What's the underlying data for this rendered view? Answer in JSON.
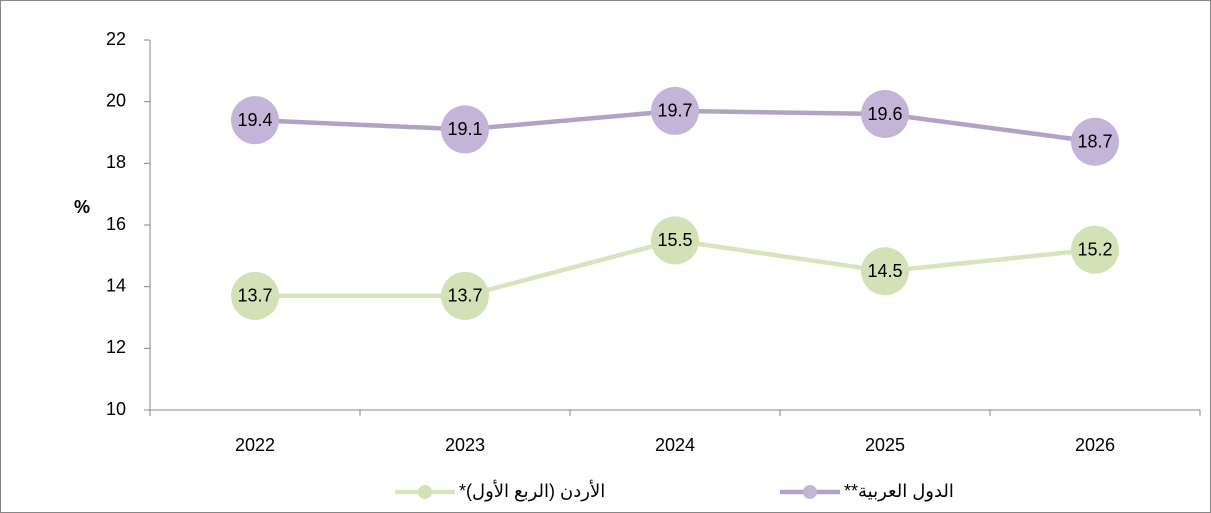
{
  "chart_data": {
    "type": "line",
    "categories": [
      "2022",
      "2023",
      "2024",
      "2025",
      "2026"
    ],
    "series": [
      {
        "name": "الأردن (الربع الأول)*",
        "color": "#d7e4bd",
        "marker_color": "#d3e1b6",
        "values": [
          13.7,
          13.7,
          15.5,
          14.5,
          15.2
        ]
      },
      {
        "name": "الدول العربية**",
        "color": "#b3a2c7",
        "marker_color": "#c4b5d8",
        "values": [
          19.4,
          19.1,
          19.7,
          19.6,
          18.7
        ]
      }
    ],
    "y_label": "%",
    "ylim": [
      10,
      22
    ],
    "yticks": [
      10,
      12,
      14,
      16,
      18,
      20,
      22
    ],
    "grid": false,
    "legend": "bottom"
  }
}
